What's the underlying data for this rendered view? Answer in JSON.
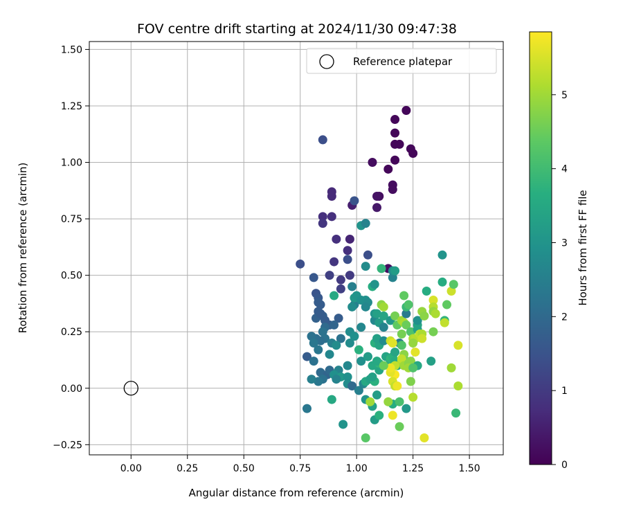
{
  "chart_data": {
    "type": "scatter",
    "title": "FOV centre drift starting at 2024/11/30 09:47:38",
    "xlabel": "Angular distance from reference (arcmin)",
    "ylabel": "Rotation from reference (arcmin)",
    "xlim": [
      -0.185,
      1.65
    ],
    "ylim": [
      -0.295,
      1.535
    ],
    "xticks": [
      "0.00",
      "0.25",
      "0.50",
      "0.75",
      "1.00",
      "1.25",
      "1.50"
    ],
    "yticks": [
      "−0.25",
      "0.00",
      "0.25",
      "0.50",
      "0.75",
      "1.00",
      "1.25",
      "1.50"
    ],
    "grid": true,
    "legend": {
      "position": "top-right",
      "label": "Reference platepar"
    },
    "reference_point": {
      "x": 0.0,
      "y": 0.0
    },
    "colorbar": {
      "label": "Hours from first FF file",
      "colormap": "viridis",
      "range": [
        0,
        5.85
      ],
      "ticks": [
        "0",
        "1",
        "2",
        "3",
        "4",
        "5"
      ]
    },
    "series": [
      {
        "points": [
          [
            1.22,
            1.23,
            0.1
          ],
          [
            1.17,
            1.19,
            0.1
          ],
          [
            1.17,
            1.13,
            0.1
          ],
          [
            1.17,
            1.08,
            0.1
          ],
          [
            1.19,
            1.08,
            0.1
          ],
          [
            1.24,
            1.06,
            0.1
          ],
          [
            1.25,
            1.04,
            0.1
          ],
          [
            1.17,
            1.01,
            0.1
          ],
          [
            1.14,
            0.97,
            0.1
          ],
          [
            1.07,
            1.0,
            0.2
          ],
          [
            1.16,
            0.9,
            0.2
          ],
          [
            1.16,
            0.88,
            0.2
          ],
          [
            1.1,
            0.85,
            0.2
          ],
          [
            1.09,
            0.85,
            0.3
          ],
          [
            1.09,
            0.8,
            0.4
          ],
          [
            1.14,
            0.53,
            0.2
          ],
          [
            0.98,
            0.81,
            0.5
          ],
          [
            0.97,
            0.66,
            0.6
          ],
          [
            0.89,
            0.87,
            0.7
          ],
          [
            0.89,
            0.85,
            0.7
          ],
          [
            0.85,
            0.76,
            0.8
          ],
          [
            0.85,
            0.73,
            0.9
          ],
          [
            0.89,
            0.76,
            0.8
          ],
          [
            0.91,
            0.66,
            0.8
          ],
          [
            0.96,
            0.61,
            0.8
          ],
          [
            0.9,
            0.56,
            0.9
          ],
          [
            0.97,
            0.5,
            1.0
          ],
          [
            0.93,
            0.48,
            1.0
          ],
          [
            0.88,
            0.5,
            1.1
          ],
          [
            0.93,
            0.44,
            1.1
          ],
          [
            0.75,
            0.55,
            1.4
          ],
          [
            0.85,
            1.1,
            1.4
          ],
          [
            0.99,
            0.83,
            1.5
          ],
          [
            0.96,
            0.57,
            1.4
          ],
          [
            1.05,
            0.59,
            1.4
          ],
          [
            0.81,
            0.49,
            1.6
          ],
          [
            0.82,
            0.42,
            1.5
          ],
          [
            0.83,
            0.4,
            1.6
          ],
          [
            0.83,
            0.38,
            1.7
          ],
          [
            0.84,
            0.37,
            1.7
          ],
          [
            0.83,
            0.34,
            1.7
          ],
          [
            0.82,
            0.31,
            1.8
          ],
          [
            0.85,
            0.32,
            1.8
          ],
          [
            0.86,
            0.3,
            1.7
          ],
          [
            0.84,
            0.33,
            1.7
          ],
          [
            0.88,
            0.28,
            1.7
          ],
          [
            0.92,
            0.31,
            1.7
          ],
          [
            0.9,
            0.28,
            1.9
          ],
          [
            0.86,
            0.27,
            2.0
          ],
          [
            0.85,
            0.25,
            2.2
          ],
          [
            0.86,
            0.22,
            2.2
          ],
          [
            0.82,
            0.22,
            2.1
          ],
          [
            0.8,
            0.23,
            2.2
          ],
          [
            0.84,
            0.21,
            2.1
          ],
          [
            0.81,
            0.2,
            2.3
          ],
          [
            0.83,
            0.17,
            2.3
          ],
          [
            0.78,
            0.14,
            1.7
          ],
          [
            0.81,
            0.12,
            2.2
          ],
          [
            0.84,
            0.07,
            2.0
          ],
          [
            0.87,
            0.06,
            1.9
          ],
          [
            0.88,
            0.08,
            2.0
          ],
          [
            0.85,
            0.04,
            2.2
          ],
          [
            0.83,
            0.03,
            2.3
          ],
          [
            0.8,
            0.04,
            2.5
          ],
          [
            0.78,
            -0.09,
            2.3
          ],
          [
            0.93,
            0.22,
            2.2
          ],
          [
            0.89,
            0.2,
            2.5
          ],
          [
            0.91,
            0.19,
            2.8
          ],
          [
            0.88,
            0.15,
            2.7
          ],
          [
            0.92,
            0.08,
            2.6
          ],
          [
            0.9,
            0.06,
            2.9
          ],
          [
            0.93,
            0.05,
            3.1
          ],
          [
            0.91,
            0.04,
            2.6
          ],
          [
            0.96,
            0.1,
            2.7
          ],
          [
            0.96,
            0.05,
            2.9
          ],
          [
            0.96,
            0.02,
            2.8
          ],
          [
            0.98,
            0.01,
            2.0
          ],
          [
            0.97,
            0.2,
            2.8
          ],
          [
            0.97,
            0.25,
            2.8
          ],
          [
            0.99,
            0.23,
            2.9
          ],
          [
            1.02,
            0.27,
            2.7
          ],
          [
            0.99,
            0.37,
            2.5
          ],
          [
            0.98,
            0.45,
            2.5
          ],
          [
            0.99,
            0.4,
            3.1
          ],
          [
            0.98,
            0.36,
            2.8
          ],
          [
            1.0,
            0.41,
            3.0
          ],
          [
            1.02,
            0.39,
            2.9
          ],
          [
            1.04,
            0.39,
            2.9
          ],
          [
            1.05,
            0.38,
            2.8
          ],
          [
            1.04,
            0.36,
            2.7
          ],
          [
            1.02,
            0.72,
            3.0
          ],
          [
            1.04,
            0.73,
            2.6
          ],
          [
            1.04,
            0.54,
            2.8
          ],
          [
            1.07,
            0.45,
            3.6
          ],
          [
            1.08,
            0.46,
            3.0
          ],
          [
            1.01,
            0.17,
            3.7
          ],
          [
            1.02,
            0.12,
            2.9
          ],
          [
            1.05,
            0.14,
            3.2
          ],
          [
            1.03,
            0.02,
            2.7
          ],
          [
            1.01,
            -0.01,
            2.5
          ],
          [
            1.04,
            -0.05,
            3.0
          ],
          [
            1.04,
            0.03,
            3.5
          ],
          [
            1.06,
            0.04,
            3.3
          ],
          [
            1.08,
            0.03,
            3.7
          ],
          [
            1.07,
            0.05,
            3.3
          ],
          [
            1.1,
            0.08,
            3.4
          ],
          [
            1.07,
            0.1,
            3.5
          ],
          [
            1.1,
            0.11,
            3.8
          ],
          [
            1.09,
            0.12,
            3.5
          ],
          [
            1.08,
            0.2,
            3.7
          ],
          [
            1.1,
            0.19,
            3.4
          ],
          [
            1.09,
            0.22,
            3.3
          ],
          [
            1.08,
            0.3,
            2.7
          ],
          [
            1.08,
            0.33,
            3.0
          ],
          [
            1.09,
            0.33,
            3.3
          ],
          [
            1.1,
            0.29,
            3.2
          ],
          [
            1.12,
            0.32,
            3.4
          ],
          [
            1.15,
            0.3,
            3.1
          ],
          [
            1.12,
            0.27,
            2.6
          ],
          [
            1.12,
            0.21,
            2.8
          ],
          [
            1.13,
            0.14,
            3.4
          ],
          [
            1.15,
            0.12,
            3.3
          ],
          [
            1.15,
            0.13,
            3.8
          ],
          [
            1.16,
            0.14,
            3.7
          ],
          [
            1.17,
            0.16,
            3.4
          ],
          [
            1.17,
            0.12,
            3.6
          ],
          [
            1.18,
            0.1,
            3.5
          ],
          [
            1.16,
            0.49,
            2.6
          ],
          [
            1.16,
            0.52,
            2.8
          ],
          [
            1.17,
            0.52,
            3.2
          ],
          [
            1.11,
            0.53,
            3.8
          ],
          [
            1.09,
            -0.03,
            3.2
          ],
          [
            1.07,
            -0.08,
            3.3
          ],
          [
            1.08,
            -0.14,
            3.2
          ],
          [
            1.1,
            -0.12,
            3.7
          ],
          [
            1.16,
            -0.07,
            3.6
          ],
          [
            1.19,
            -0.06,
            4.1
          ],
          [
            1.22,
            -0.09,
            3.1
          ],
          [
            1.19,
            -0.17,
            4.5
          ],
          [
            1.04,
            -0.22,
            4.3
          ],
          [
            0.94,
            -0.16,
            3.0
          ],
          [
            0.89,
            -0.05,
            3.5
          ],
          [
            0.9,
            0.41,
            3.5
          ],
          [
            1.11,
            0.37,
            4.8
          ],
          [
            1.12,
            0.36,
            5.0
          ],
          [
            1.17,
            0.32,
            4.6
          ],
          [
            1.18,
            0.28,
            4.4
          ],
          [
            1.2,
            0.3,
            5.0
          ],
          [
            1.21,
            0.29,
            5.1
          ],
          [
            1.22,
            0.33,
            2.4
          ],
          [
            1.22,
            0.28,
            4.5
          ],
          [
            1.24,
            0.25,
            4.2
          ],
          [
            1.27,
            0.26,
            3.3
          ],
          [
            1.27,
            0.28,
            3.4
          ],
          [
            1.27,
            0.3,
            2.9
          ],
          [
            1.2,
            0.24,
            4.6
          ],
          [
            1.19,
            0.2,
            2.4
          ],
          [
            1.2,
            0.19,
            4.2
          ],
          [
            1.21,
            0.15,
            4.8
          ],
          [
            1.22,
            0.12,
            4.5
          ],
          [
            1.2,
            0.12,
            5.1
          ],
          [
            1.2,
            0.13,
            5.3
          ],
          [
            1.21,
            0.1,
            5.0
          ],
          [
            1.23,
            0.11,
            4.8
          ],
          [
            1.24,
            0.12,
            4.8
          ],
          [
            1.23,
            0.09,
            5.0
          ],
          [
            1.25,
            0.22,
            5.1
          ],
          [
            1.26,
            0.22,
            5.2
          ],
          [
            1.28,
            0.24,
            5.3
          ],
          [
            1.29,
            0.24,
            5.1
          ],
          [
            1.29,
            0.22,
            5.4
          ],
          [
            1.25,
            0.2,
            4.9
          ],
          [
            1.27,
            0.1,
            3.5
          ],
          [
            1.25,
            0.09,
            4.2
          ],
          [
            1.24,
            0.03,
            4.7
          ],
          [
            1.25,
            -0.04,
            5.2
          ],
          [
            1.26,
            0.16,
            5.6
          ],
          [
            1.22,
            0.36,
            3.9
          ],
          [
            1.21,
            0.41,
            4.4
          ],
          [
            1.23,
            0.37,
            4.2
          ],
          [
            1.29,
            0.34,
            4.9
          ],
          [
            1.3,
            0.32,
            4.8
          ],
          [
            1.31,
            0.43,
            3.6
          ],
          [
            1.33,
            0.12,
            3.3
          ],
          [
            1.34,
            0.39,
            5.5
          ],
          [
            1.34,
            0.36,
            5.2
          ],
          [
            1.34,
            0.34,
            4.9
          ],
          [
            1.35,
            0.33,
            5.1
          ],
          [
            1.34,
            0.25,
            4.6
          ],
          [
            1.38,
            0.59,
            3.0
          ],
          [
            1.38,
            0.47,
            3.6
          ],
          [
            1.39,
            0.3,
            3.8
          ],
          [
            1.39,
            0.29,
            5.3
          ],
          [
            1.4,
            0.37,
            4.4
          ],
          [
            1.42,
            0.43,
            5.4
          ],
          [
            1.42,
            0.09,
            5.0
          ],
          [
            1.43,
            0.46,
            4.3
          ],
          [
            1.44,
            -0.11,
            3.9
          ],
          [
            1.45,
            0.19,
            5.5
          ],
          [
            1.45,
            0.01,
            5.1
          ],
          [
            1.3,
            -0.22,
            5.6
          ],
          [
            1.16,
            -0.12,
            5.7
          ],
          [
            1.15,
            0.21,
            5.4
          ],
          [
            1.16,
            0.2,
            5.6
          ],
          [
            1.17,
            0.1,
            5.3
          ],
          [
            1.17,
            0.06,
            5.8
          ],
          [
            1.15,
            0.07,
            5.6
          ],
          [
            1.15,
            0.09,
            5.7
          ],
          [
            1.16,
            0.03,
            5.5
          ],
          [
            1.17,
            0.01,
            5.3
          ],
          [
            1.18,
            0.01,
            5.7
          ],
          [
            1.14,
            -0.06,
            4.9
          ],
          [
            1.06,
            -0.06,
            5.0
          ],
          [
            1.12,
            0.1,
            4.5
          ]
        ]
      }
    ]
  }
}
